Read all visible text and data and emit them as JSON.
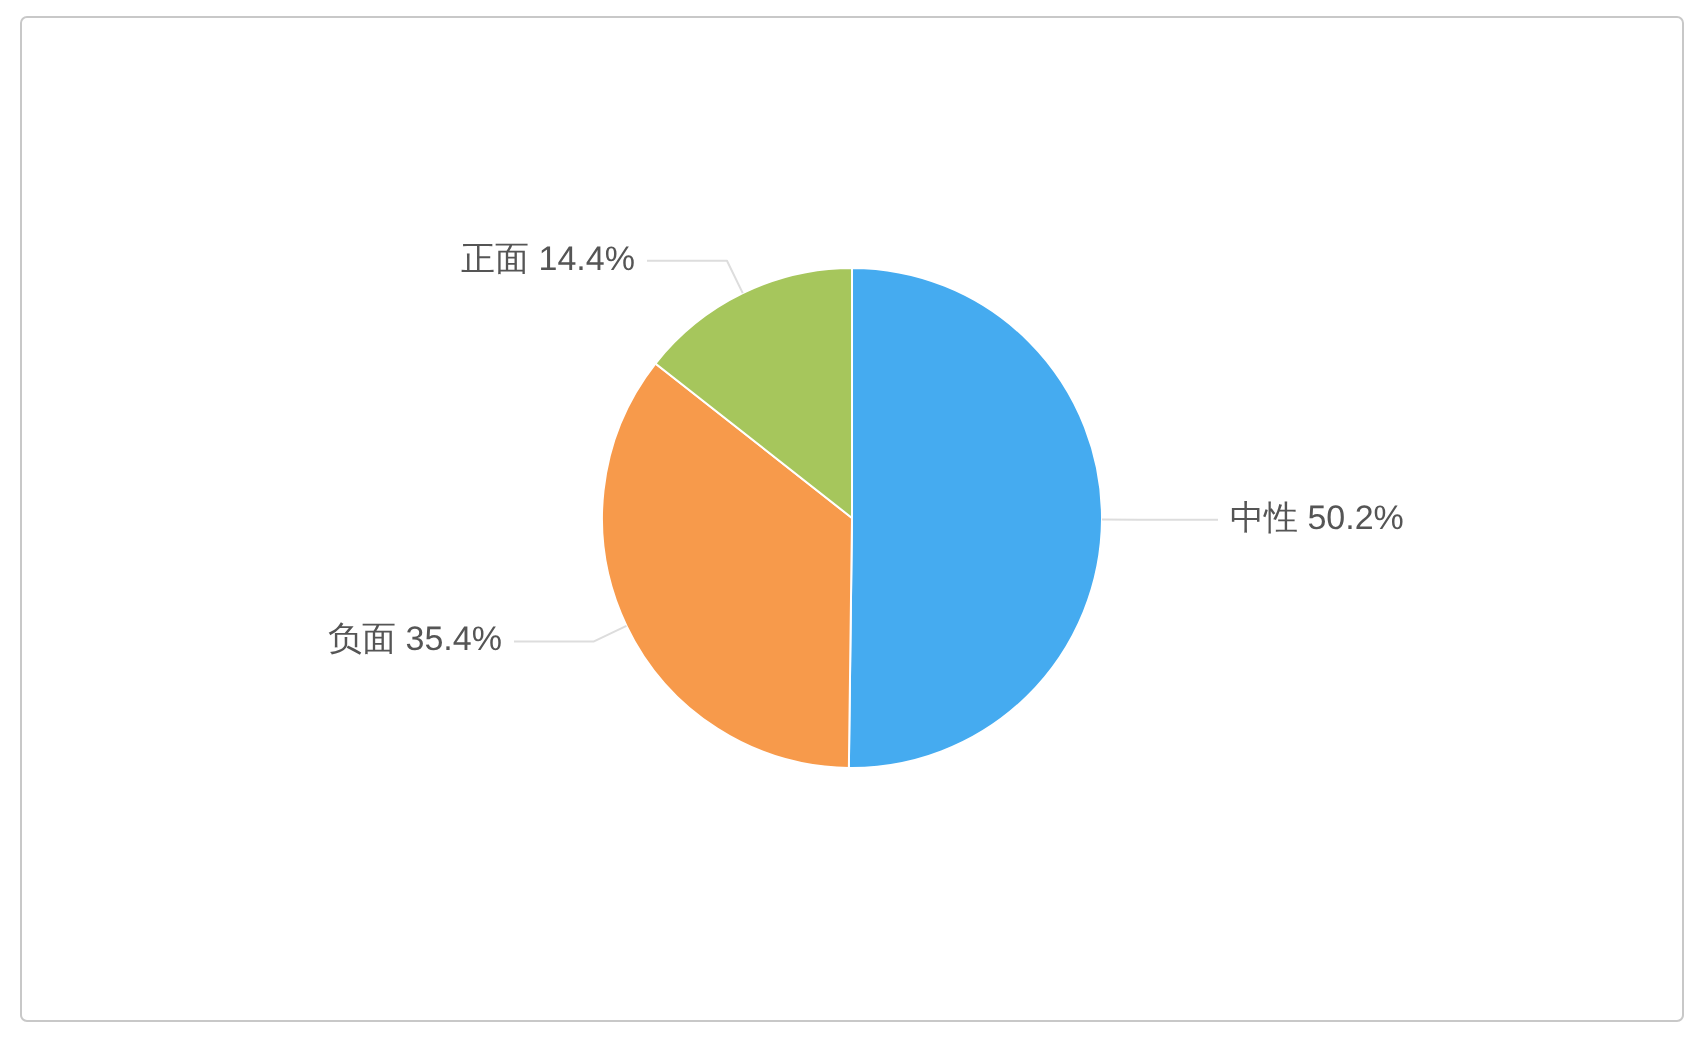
{
  "chart_data": {
    "type": "pie",
    "categories": [
      "中性",
      "负面",
      "正面"
    ],
    "values": [
      50.2,
      35.4,
      14.4
    ],
    "value_labels": [
      "50.2%",
      "35.4%",
      "14.4%"
    ],
    "colors": [
      "#45abf0",
      "#f79a4b",
      "#a6c65c"
    ]
  }
}
